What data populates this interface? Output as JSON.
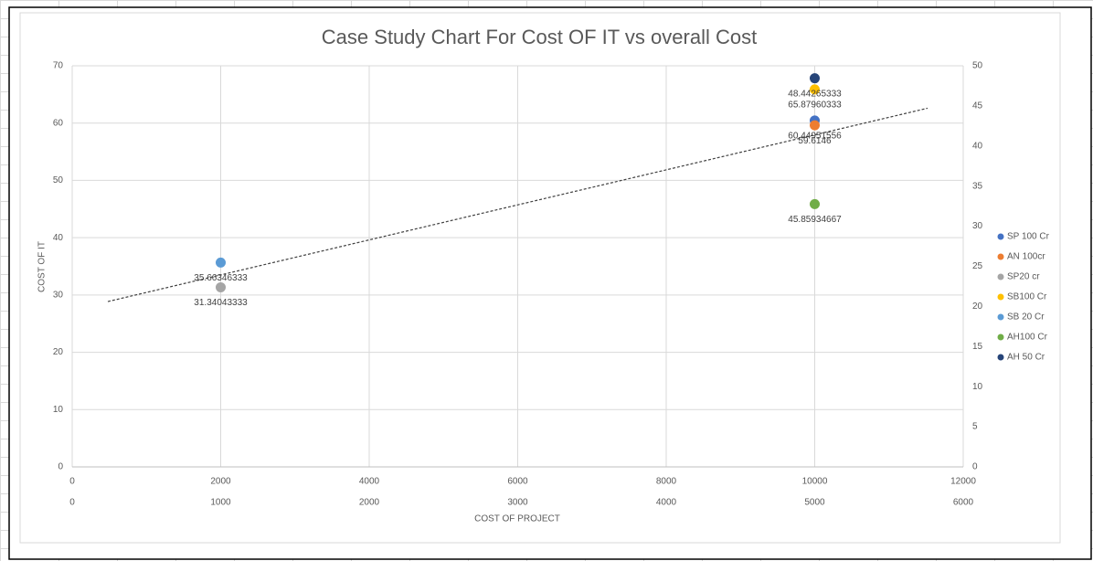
{
  "chart_data": {
    "type": "scatter",
    "title": "Case Study Chart For Cost OF IT vs overall Cost",
    "xlabel": "COST OF PROJECT",
    "ylabel": "COST OF IT",
    "xlim": [
      0,
      12000
    ],
    "xticks": [
      0,
      2000,
      4000,
      6000,
      8000,
      10000,
      12000
    ],
    "x2lim": [
      0,
      6000
    ],
    "x2ticks": [
      0,
      1000,
      2000,
      3000,
      4000,
      5000,
      6000
    ],
    "ylim": [
      0,
      70
    ],
    "yticks": [
      0,
      10,
      20,
      30,
      40,
      50,
      60,
      70
    ],
    "y2lim": [
      0,
      50
    ],
    "y2ticks": [
      0,
      5,
      10,
      15,
      20,
      25,
      30,
      35,
      40,
      45,
      50
    ],
    "grid": true,
    "trendline": true,
    "legend": "right",
    "series": [
      {
        "name": "SP 100 Cr",
        "color": "#4472c4",
        "x": [
          10000
        ],
        "values": [
          60.44951556
        ]
      },
      {
        "name": "AN 100cr",
        "color": "#ed7d31",
        "x": [
          10000
        ],
        "values": [
          59.6146
        ]
      },
      {
        "name": "SP20 cr",
        "color": "#a5a5a5",
        "x": [
          2000
        ],
        "values": [
          31.34043333
        ]
      },
      {
        "name": "SB100 Cr",
        "color": "#ffc000",
        "x": [
          10000
        ],
        "values": [
          65.87960333
        ]
      },
      {
        "name": "SB 20 Cr",
        "color": "#5b9bd5",
        "x": [
          2000
        ],
        "values": [
          35.66346333
        ]
      },
      {
        "name": "AH100 Cr",
        "color": "#70ad47",
        "x": [
          10000
        ],
        "values": [
          45.85934667
        ]
      },
      {
        "name": "AH 50 Cr",
        "color": "#264478",
        "x": [
          5000
        ],
        "values": [
          48.44265333
        ],
        "axis": "y2",
        "xaxis": "x2"
      }
    ]
  }
}
